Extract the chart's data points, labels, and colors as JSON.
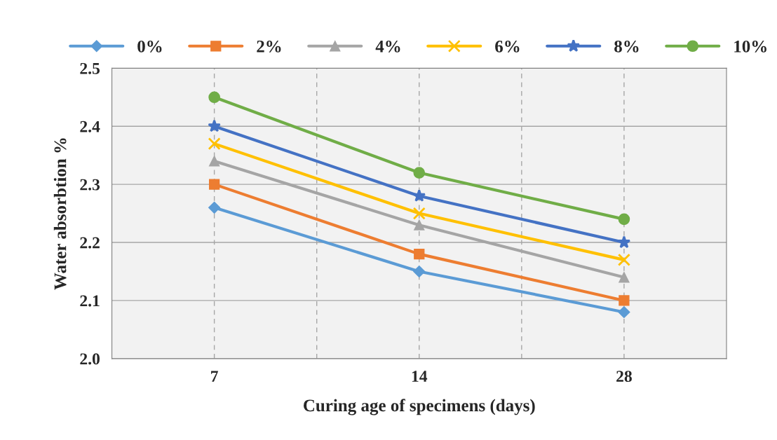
{
  "chart_data": {
    "type": "line",
    "xlabel": "Curing age of specimens (days)",
    "ylabel": "Water absorbtion %",
    "categories": [
      "7",
      "14",
      "28"
    ],
    "series": [
      {
        "name": "0%",
        "color": "#5b9bd5",
        "marker": "diamond",
        "values": [
          2.26,
          2.15,
          2.08
        ]
      },
      {
        "name": "2%",
        "color": "#ed7d31",
        "marker": "square",
        "values": [
          2.3,
          2.18,
          2.1
        ]
      },
      {
        "name": "4%",
        "color": "#a5a5a5",
        "marker": "triangle",
        "values": [
          2.34,
          2.23,
          2.14
        ]
      },
      {
        "name": "6%",
        "color": "#ffc000",
        "marker": "cross",
        "values": [
          2.37,
          2.25,
          2.17
        ]
      },
      {
        "name": "8%",
        "color": "#4472c4",
        "marker": "star",
        "values": [
          2.4,
          2.28,
          2.2
        ]
      },
      {
        "name": "10%",
        "color": "#70ad47",
        "marker": "circle",
        "values": [
          2.45,
          2.32,
          2.24
        ]
      }
    ],
    "ylim": [
      2.0,
      2.5
    ],
    "yticks": [
      {
        "value": 2.0,
        "label": "2.0"
      },
      {
        "value": 2.1,
        "label": "2.1"
      },
      {
        "value": 2.2,
        "label": "2.2"
      },
      {
        "value": 2.3,
        "label": "2.3"
      },
      {
        "value": 2.4,
        "label": "2.4"
      },
      {
        "value": 2.5,
        "label": "2.5"
      }
    ],
    "grid": true,
    "legend": "top"
  }
}
